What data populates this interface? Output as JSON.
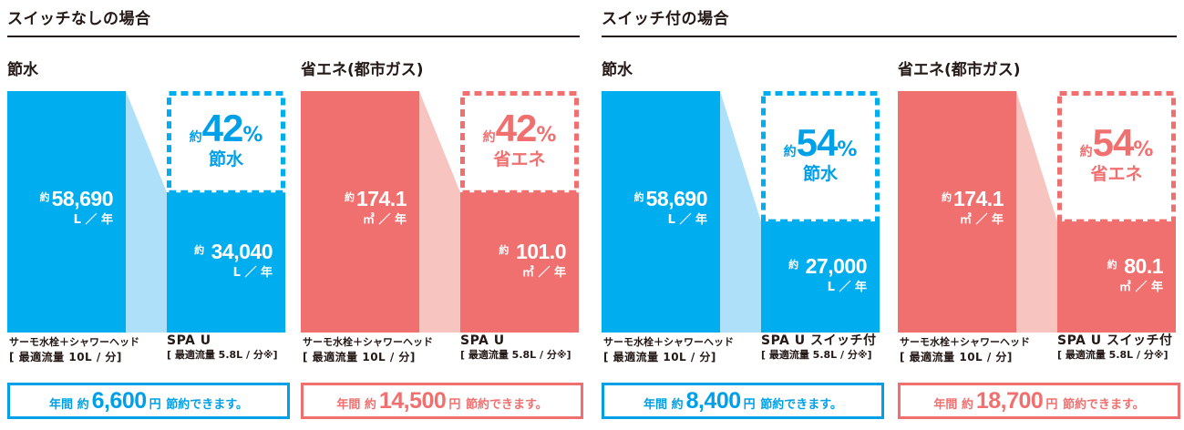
{
  "sections": [
    {
      "title": "スイッチなしの場合",
      "panels": [
        {
          "title": "節水",
          "theme": "water",
          "before": {
            "approx": "約",
            "value": "58,690",
            "unit": "L ／ 年"
          },
          "after": {
            "approx": "約",
            "value": "34,040",
            "unit": "L ／ 年"
          },
          "badge": {
            "approx": "約",
            "percent": "42",
            "percent_sign": "%",
            "word": "節水"
          },
          "before_label": {
            "line1": "サーモ水栓＋シャワーヘッド",
            "line2": "[ 最適流量 10L / 分]"
          },
          "after_label": {
            "line1": "SPA U",
            "line2": "[ 最適流量 5.8L / 分※]"
          },
          "saving": {
            "prefix": "年間 約",
            "amount": "6,600",
            "yen": "円",
            "suffix": "節約できます。"
          }
        },
        {
          "title": "省エネ(都市ガス)",
          "theme": "energy",
          "before": {
            "approx": "約",
            "value": "174.1",
            "unit": "㎥ ／ 年"
          },
          "after": {
            "approx": "約",
            "value": "101.0",
            "unit": "㎥ ／ 年"
          },
          "badge": {
            "approx": "約",
            "percent": "42",
            "percent_sign": "%",
            "word": "省エネ"
          },
          "before_label": {
            "line1": "サーモ水栓＋シャワーヘッド",
            "line2": "[ 最適流量 10L / 分]"
          },
          "after_label": {
            "line1": "SPA U",
            "line2": "[ 最適流量 5.8L / 分※]"
          },
          "saving": {
            "prefix": "年間 約",
            "amount": "14,500",
            "yen": "円",
            "suffix": "節約できます。"
          }
        }
      ]
    },
    {
      "title": "スイッチ付の場合",
      "panels": [
        {
          "title": "節水",
          "theme": "water",
          "before": {
            "approx": "約",
            "value": "58,690",
            "unit": "L ／ 年"
          },
          "after": {
            "approx": "約",
            "value": "27,000",
            "unit": "L ／ 年"
          },
          "badge": {
            "approx": "約",
            "percent": "54",
            "percent_sign": "%",
            "word": "節水"
          },
          "before_label": {
            "line1": "サーモ水栓＋シャワーヘッド",
            "line2": "[ 最適流量 10L / 分]"
          },
          "after_label": {
            "line1": "SPA U スイッチ付",
            "line2": "[ 最適流量 5.8L / 分※]"
          },
          "saving": {
            "prefix": "年間 約",
            "amount": "8,400",
            "yen": "円",
            "suffix": "節約できます。"
          }
        },
        {
          "title": "省エネ(都市ガス)",
          "theme": "energy",
          "before": {
            "approx": "約",
            "value": "174.1",
            "unit": "㎥ ／ 年"
          },
          "after": {
            "approx": "約",
            "value": "80.1",
            "unit": "㎥ ／ 年"
          },
          "badge": {
            "approx": "約",
            "percent": "54",
            "percent_sign": "%",
            "word": "省エネ"
          },
          "before_label": {
            "line1": "サーモ水栓＋シャワーヘッド",
            "line2": "[ 最適流量 10L / 分]"
          },
          "after_label": {
            "line1": "SPA U スイッチ付",
            "line2": "[ 最適流量 5.8L / 分※]"
          },
          "saving": {
            "prefix": "年間 約",
            "amount": "18,700",
            "yen": "円",
            "suffix": "節約できます。"
          }
        }
      ]
    }
  ],
  "colors": {
    "water": {
      "bar": "#00aeef",
      "connector": "#aee0f9",
      "text": "#00a0e9"
    },
    "energy": {
      "bar": "#f07070",
      "connector": "#f8c4c0",
      "text": "#f07070"
    }
  },
  "chart_data": [
    {
      "type": "bar",
      "title": "スイッチなしの場合 — 節水",
      "categories": [
        "サーモ水栓＋シャワーヘッド",
        "SPA U"
      ],
      "values": [
        58690,
        34040
      ],
      "ylabel": "L／年",
      "reduction_percent": 42,
      "annual_saving_yen": 6600
    },
    {
      "type": "bar",
      "title": "スイッチなしの場合 — 省エネ(都市ガス)",
      "categories": [
        "サーモ水栓＋シャワーヘッド",
        "SPA U"
      ],
      "values": [
        174.1,
        101.0
      ],
      "ylabel": "㎥／年",
      "reduction_percent": 42,
      "annual_saving_yen": 14500
    },
    {
      "type": "bar",
      "title": "スイッチ付の場合 — 節水",
      "categories": [
        "サーモ水栓＋シャワーヘッド",
        "SPA U スイッチ付"
      ],
      "values": [
        58690,
        27000
      ],
      "ylabel": "L／年",
      "reduction_percent": 54,
      "annual_saving_yen": 8400
    },
    {
      "type": "bar",
      "title": "スイッチ付の場合 — 省エネ(都市ガス)",
      "categories": [
        "サーモ水栓＋シャワーヘッド",
        "SPA U スイッチ付"
      ],
      "values": [
        174.1,
        80.1
      ],
      "ylabel": "㎥／年",
      "reduction_percent": 54,
      "annual_saving_yen": 18700
    }
  ]
}
